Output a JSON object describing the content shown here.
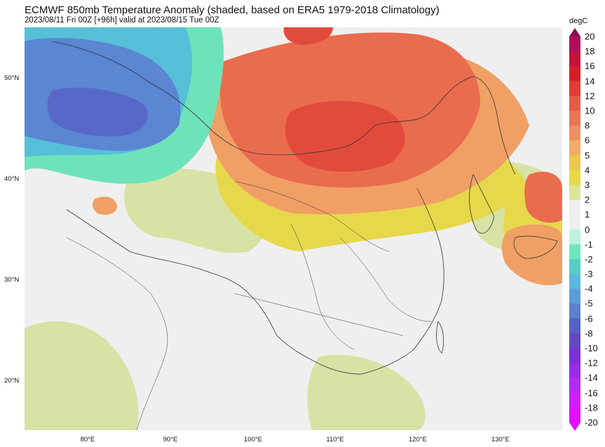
{
  "header": {
    "title": "ECMWF 850mb Temperature Anomaly (shaded, based on ERA5 1979-2018 Climatology)",
    "subtitle": "2023/08/11 Fri 00Z [+96h] valid at 2023/08/15 Tue 00Z"
  },
  "axes": {
    "lat_labels": [
      "50°N",
      "40°N",
      "30°N",
      "20°N"
    ],
    "lon_labels": [
      "80°E",
      "90°E",
      "100°E",
      "110°E",
      "120°E",
      "130°E"
    ]
  },
  "colorbar": {
    "unit": "degC",
    "levels": [
      "20",
      "18",
      "16",
      "14",
      "12",
      "10",
      "8",
      "6",
      "5",
      "4",
      "3",
      "2",
      "1",
      "0",
      "-1",
      "-2",
      "-3",
      "-4",
      "-5",
      "-6",
      "-8",
      "-10",
      "-12",
      "-14",
      "-16",
      "-18",
      "-20"
    ],
    "colors": [
      "#ad0f5c",
      "#c4123d",
      "#d81d2a",
      "#e23a36",
      "#e85b45",
      "#ec7555",
      "#ef9060",
      "#f2ac66",
      "#ecc84d",
      "#e7da43",
      "#dbe497",
      "#efefef",
      "#efefef",
      "#bff1dd",
      "#6fe5bc",
      "#52cfc2",
      "#5ab9dc",
      "#5a9cd9",
      "#5a80d0",
      "#5561c6",
      "#6348c4",
      "#7b2fd6",
      "#9a2ae7",
      "#b629f2",
      "#cf1ffa",
      "#e010ff"
    ],
    "top_arrow_color": "#8a0a55",
    "bottom_arrow_color": "#e010ff"
  },
  "map": {
    "anomaly_colors": {
      "strong_warm": "#e24b3c",
      "warm": "#ea6c4e",
      "mild_warm": "#f0a065",
      "slight_warm": "#e6d84a",
      "light_warm": "#d6e3a5",
      "neutral": "#efefef",
      "slight_cool": "#6ee3b9",
      "cool": "#57bfd8",
      "cold": "#5a86d2",
      "very_cold": "#5868c8"
    }
  }
}
